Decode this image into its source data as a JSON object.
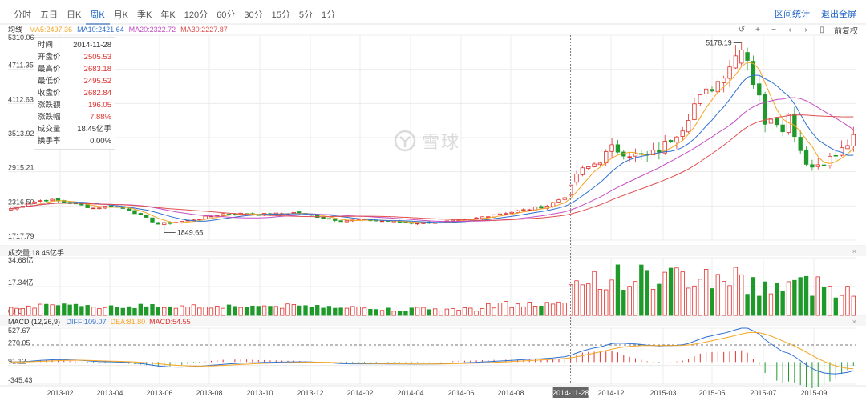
{
  "tabs": [
    {
      "label": "分时",
      "active": false
    },
    {
      "label": "五日",
      "active": false
    },
    {
      "label": "日K",
      "active": false
    },
    {
      "label": "周K",
      "active": true
    },
    {
      "label": "月K",
      "active": false
    },
    {
      "label": "季K",
      "active": false
    },
    {
      "label": "年K",
      "active": false
    },
    {
      "label": "120分",
      "active": false
    },
    {
      "label": "60分",
      "active": false
    },
    {
      "label": "30分",
      "active": false
    },
    {
      "label": "15分",
      "active": false
    },
    {
      "label": "5分",
      "active": false
    },
    {
      "label": "1分",
      "active": false
    }
  ],
  "header_links": {
    "range_stats": "区间统计",
    "exit_fullscreen": "退出全屏"
  },
  "toolbar": {
    "restore_label": "前复权"
  },
  "ma_legend": {
    "prefix": "均线",
    "items": [
      {
        "label": "MA5:2497.36",
        "color": "#f5a623"
      },
      {
        "label": "MA10:2421.64",
        "color": "#2f6fd1"
      },
      {
        "label": "MA20:2322.72",
        "color": "#c44fc4"
      },
      {
        "label": "MA30:2227.87",
        "color": "#e05050"
      }
    ]
  },
  "info_box": [
    {
      "key": "时间",
      "value": "2014-11-28",
      "red": false
    },
    {
      "key": "开盘价",
      "value": "2505.53",
      "red": true
    },
    {
      "key": "最高价",
      "value": "2683.18",
      "red": true
    },
    {
      "key": "最低价",
      "value": "2495.52",
      "red": true
    },
    {
      "key": "收盘价",
      "value": "2682.84",
      "red": true
    },
    {
      "key": "涨跌额",
      "value": "196.05",
      "red": true
    },
    {
      "key": "涨跌幅",
      "value": "7.88%",
      "red": true
    },
    {
      "key": "成交量",
      "value": "18.45亿手",
      "red": false
    },
    {
      "key": "换手率",
      "value": "0.00%",
      "red": false
    }
  ],
  "watermark": "雪球",
  "volume_legend": "成交量 18.45亿手",
  "macd_legend": {
    "prefix": "MACD (12,26,9)",
    "items": [
      {
        "label": "DIFF:109.07",
        "color": "#2f6fd1"
      },
      {
        "label": "DEA:81.80",
        "color": "#f5a623"
      },
      {
        "label": "MACD:54.55",
        "color": "#e0302b"
      }
    ]
  },
  "colors": {
    "up": "#e0302b",
    "down": "#1f9a2a",
    "grid": "#ececec",
    "crosshair": "#555555"
  },
  "chart_data": [
    {
      "type": "candlestick",
      "interval": "weekly",
      "ylim": [
        1717.79,
        5310.06
      ],
      "y_ticks": [
        "5310.06",
        "4711.35",
        "4112.63",
        "3513.92",
        "2915.21",
        "2316.50",
        "1717.79"
      ],
      "x_ticks": [
        "2013-02",
        "2013-04",
        "2013-06",
        "2013-08",
        "2013-10",
        "2013-12",
        "2014-02",
        "2014-04",
        "2014-06",
        "2014-08",
        "2014-11-28",
        "2014-12",
        "2015-03",
        "2015-05",
        "2015-07",
        "2015-09"
      ],
      "annotations": [
        {
          "label": "5178.19",
          "type": "high"
        },
        {
          "label": "1849.65",
          "type": "low"
        }
      ],
      "crosshair_date": "2014-11-28",
      "crosshair_index": 95,
      "anchors": [
        [
          0,
          2270
        ],
        [
          2,
          2330
        ],
        [
          4,
          2390
        ],
        [
          6,
          2430
        ],
        [
          8,
          2400
        ],
        [
          11,
          2350
        ],
        [
          14,
          2280
        ],
        [
          17,
          2320
        ],
        [
          20,
          2250
        ],
        [
          23,
          2100
        ],
        [
          25,
          2000
        ],
        [
          27,
          2020
        ],
        [
          30,
          2060
        ],
        [
          33,
          2120
        ],
        [
          36,
          2180
        ],
        [
          40,
          2180
        ],
        [
          44,
          2170
        ],
        [
          48,
          2200
        ],
        [
          52,
          2130
        ],
        [
          56,
          2060
        ],
        [
          60,
          2070
        ],
        [
          64,
          2050
        ],
        [
          68,
          2020
        ],
        [
          72,
          2030
        ],
        [
          75,
          2050
        ],
        [
          78,
          2080
        ],
        [
          82,
          2170
        ],
        [
          85,
          2210
        ],
        [
          88,
          2260
        ],
        [
          91,
          2320
        ],
        [
          94,
          2480
        ],
        [
          95,
          2682.84
        ],
        [
          96,
          2880
        ],
        [
          98,
          2990
        ],
        [
          100,
          3120
        ],
        [
          102,
          3330
        ],
        [
          104,
          3260
        ],
        [
          106,
          3200
        ],
        [
          108,
          3180
        ],
        [
          110,
          3300
        ],
        [
          112,
          3500
        ],
        [
          114,
          3700
        ],
        [
          116,
          4100
        ],
        [
          118,
          4300
        ],
        [
          120,
          4500
        ],
        [
          122,
          4800
        ],
        [
          124,
          5100
        ],
        [
          125,
          4900
        ],
        [
          126,
          4500
        ],
        [
          127,
          4300
        ],
        [
          128,
          3700
        ],
        [
          129,
          3900
        ],
        [
          130,
          3800
        ],
        [
          131,
          3700
        ],
        [
          132,
          3900
        ],
        [
          133,
          3600
        ],
        [
          134,
          3300
        ],
        [
          135,
          3100
        ],
        [
          136,
          3000
        ],
        [
          138,
          3100
        ],
        [
          140,
          3200
        ],
        [
          142,
          3400
        ],
        [
          143,
          3500
        ]
      ],
      "ma_lines": [
        {
          "name": "MA5",
          "color": "#f5a623",
          "period": 5
        },
        {
          "name": "MA10",
          "color": "#2f6fd1",
          "period": 10
        },
        {
          "name": "MA20",
          "color": "#c44fc4",
          "period": 20
        },
        {
          "name": "MA30",
          "color": "#e05050",
          "period": 30
        }
      ]
    },
    {
      "type": "bar",
      "title": "成交量",
      "ylim": [
        0,
        34.68
      ],
      "y_ticks": [
        "34.68亿",
        "17.34亿",
        "0.00"
      ],
      "unit": "亿手"
    },
    {
      "type": "line",
      "title": "MACD (12,26,9)",
      "ylim": [
        -345.43,
        527.67
      ],
      "y_ticks": [
        "527.67",
        "270.05",
        "91.12",
        "-345.43"
      ]
    }
  ]
}
